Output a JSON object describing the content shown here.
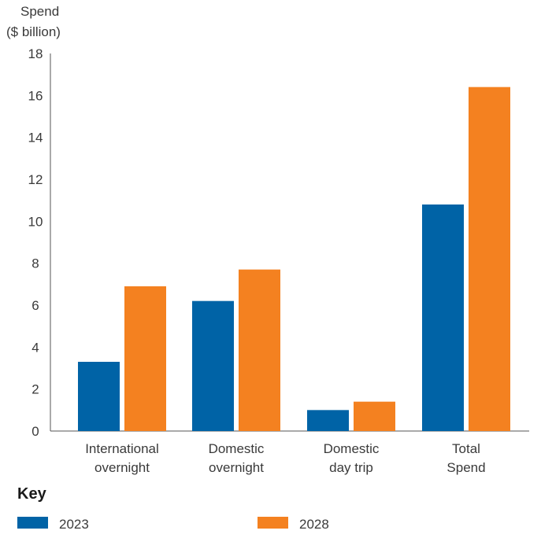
{
  "chart_data": {
    "type": "bar",
    "ylabel_lines": [
      "Spend",
      "($ billion)"
    ],
    "categories": [
      [
        "International",
        "overnight"
      ],
      [
        "Domestic",
        "overnight"
      ],
      [
        "Domestic",
        "day trip"
      ],
      [
        "Total",
        "Spend"
      ]
    ],
    "series": [
      {
        "name": "2023",
        "color": "#0063a6",
        "values": [
          3.3,
          6.2,
          1.0,
          10.8
        ]
      },
      {
        "name": "2028",
        "color": "#f48120",
        "values": [
          6.9,
          7.7,
          1.4,
          16.4
        ]
      }
    ],
    "ylim": [
      0,
      18
    ],
    "yticks": [
      0,
      2,
      4,
      6,
      8,
      10,
      12,
      14,
      16,
      18
    ],
    "legend_title": "Key",
    "legend_placement": "bottom"
  }
}
